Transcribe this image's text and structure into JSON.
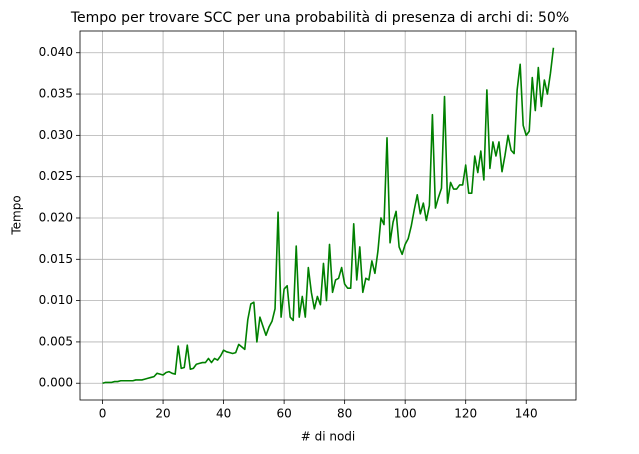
{
  "chart_data": {
    "type": "line",
    "title": "Tempo per trovare SCC per una probabilità di presenza di archi di: 50%",
    "x_label": "#  di nodi",
    "y_label": "Tempo",
    "x": [
      0,
      1,
      2,
      3,
      4,
      5,
      6,
      7,
      8,
      9,
      10,
      11,
      12,
      13,
      14,
      15,
      16,
      17,
      18,
      19,
      20,
      21,
      22,
      23,
      24,
      25,
      26,
      27,
      28,
      29,
      30,
      31,
      32,
      33,
      34,
      35,
      36,
      37,
      38,
      39,
      40,
      41,
      42,
      43,
      44,
      45,
      46,
      47,
      48,
      49,
      50,
      51,
      52,
      53,
      54,
      55,
      56,
      57,
      58,
      59,
      60,
      61,
      62,
      63,
      64,
      65,
      66,
      67,
      68,
      69,
      70,
      71,
      72,
      73,
      74,
      75,
      76,
      77,
      78,
      79,
      80,
      81,
      82,
      83,
      84,
      85,
      86,
      87,
      88,
      89,
      90,
      91,
      92,
      93,
      94,
      95,
      96,
      97,
      98,
      99,
      100,
      101,
      102,
      103,
      104,
      105,
      106,
      107,
      108,
      109,
      110,
      111,
      112,
      113,
      114,
      115,
      116,
      117,
      118,
      119,
      120,
      121,
      122,
      123,
      124,
      125,
      126,
      127,
      128,
      129,
      130,
      131,
      132,
      133,
      134,
      135,
      136,
      137,
      138,
      139,
      140,
      141,
      142,
      143,
      144,
      145,
      146,
      147,
      148,
      149
    ],
    "values": [
      0.0,
      0.0001,
      0.0001,
      0.0001,
      0.0002,
      0.0002,
      0.0003,
      0.0003,
      0.0003,
      0.0003,
      0.0003,
      0.0004,
      0.0004,
      0.0004,
      0.0005,
      0.0006,
      0.0007,
      0.0008,
      0.0012,
      0.0011,
      0.001,
      0.0013,
      0.0014,
      0.0012,
      0.0011,
      0.0045,
      0.0018,
      0.0019,
      0.0046,
      0.0017,
      0.0018,
      0.0023,
      0.0024,
      0.0025,
      0.0025,
      0.003,
      0.0025,
      0.003,
      0.0028,
      0.0033,
      0.004,
      0.0038,
      0.0037,
      0.0036,
      0.0037,
      0.0047,
      0.0044,
      0.0041,
      0.0077,
      0.0096,
      0.0098,
      0.005,
      0.008,
      0.0069,
      0.0058,
      0.0068,
      0.0075,
      0.009,
      0.0207,
      0.008,
      0.0114,
      0.0118,
      0.008,
      0.0076,
      0.0166,
      0.008,
      0.0105,
      0.008,
      0.014,
      0.011,
      0.009,
      0.0105,
      0.0095,
      0.0145,
      0.01,
      0.0168,
      0.011,
      0.0125,
      0.0127,
      0.014,
      0.012,
      0.0115,
      0.0115,
      0.0193,
      0.0125,
      0.0165,
      0.011,
      0.0127,
      0.0125,
      0.0148,
      0.0133,
      0.016,
      0.02,
      0.0192,
      0.0297,
      0.017,
      0.0195,
      0.0208,
      0.0165,
      0.0156,
      0.0168,
      0.0175,
      0.019,
      0.021,
      0.0228,
      0.0205,
      0.0218,
      0.0197,
      0.0215,
      0.0325,
      0.0212,
      0.0225,
      0.0236,
      0.0347,
      0.0218,
      0.0243,
      0.0235,
      0.0235,
      0.024,
      0.024,
      0.0264,
      0.023,
      0.023,
      0.0275,
      0.0255,
      0.0281,
      0.0246,
      0.0355,
      0.026,
      0.0292,
      0.0275,
      0.0292,
      0.0256,
      0.0276,
      0.03,
      0.0282,
      0.0278,
      0.0355,
      0.0386,
      0.0312,
      0.03,
      0.0305,
      0.037,
      0.033,
      0.0382,
      0.0335,
      0.0367,
      0.035,
      0.0375,
      0.0406
    ],
    "color": "#008000",
    "xlim": [
      -7.45,
      156.45
    ],
    "ylim": [
      -0.00203,
      0.04263
    ],
    "xticks": [
      0,
      20,
      40,
      60,
      80,
      100,
      120,
      140
    ],
    "yticks": [
      {
        "value": 0,
        "label": "0.000"
      },
      {
        "value": 0.005,
        "label": "0.005"
      },
      {
        "value": 0.01,
        "label": "0.010"
      },
      {
        "value": 0.015,
        "label": "0.015"
      },
      {
        "value": 0.02,
        "label": "0.020"
      },
      {
        "value": 0.025,
        "label": "0.025"
      },
      {
        "value": 0.03,
        "label": "0.030"
      },
      {
        "value": 0.035,
        "label": "0.035"
      },
      {
        "value": 0.04,
        "label": "0.040"
      }
    ],
    "grid": true
  }
}
